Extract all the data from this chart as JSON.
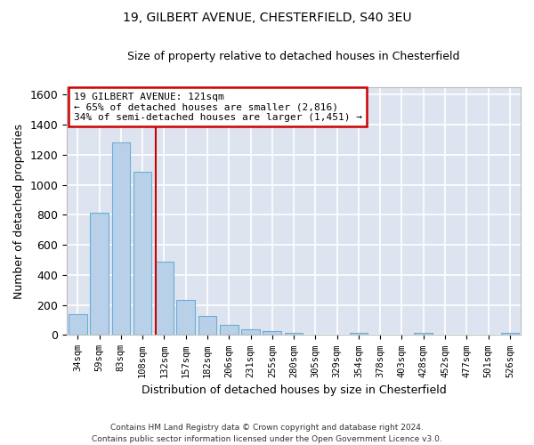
{
  "title1": "19, GILBERT AVENUE, CHESTERFIELD, S40 3EU",
  "title2": "Size of property relative to detached houses in Chesterfield",
  "xlabel": "Distribution of detached houses by size in Chesterfield",
  "ylabel": "Number of detached properties",
  "bar_color": "#b8d0e8",
  "bar_edge_color": "#6baed6",
  "background_color": "#dde4f0",
  "grid_color": "#ffffff",
  "vline_color": "#cc0000",
  "vline_x": 3.62,
  "annotation_text": "19 GILBERT AVENUE: 121sqm\n← 65% of detached houses are smaller (2,816)\n34% of semi-detached houses are larger (1,451) →",
  "annotation_box_color": "#cc0000",
  "categories": [
    "34sqm",
    "59sqm",
    "83sqm",
    "108sqm",
    "132sqm",
    "157sqm",
    "182sqm",
    "206sqm",
    "231sqm",
    "255sqm",
    "280sqm",
    "305sqm",
    "329sqm",
    "354sqm",
    "378sqm",
    "403sqm",
    "428sqm",
    "452sqm",
    "477sqm",
    "501sqm",
    "526sqm"
  ],
  "values": [
    140,
    815,
    1285,
    1090,
    490,
    235,
    128,
    65,
    38,
    26,
    14,
    0,
    0,
    15,
    0,
    0,
    13,
    0,
    0,
    0,
    12
  ],
  "ylim": [
    0,
    1650
  ],
  "yticks": [
    0,
    200,
    400,
    600,
    800,
    1000,
    1200,
    1400,
    1600
  ],
  "footer": "Contains HM Land Registry data © Crown copyright and database right 2024.\nContains public sector information licensed under the Open Government Licence v3.0.",
  "figsize": [
    6.0,
    5.0
  ],
  "dpi": 100
}
